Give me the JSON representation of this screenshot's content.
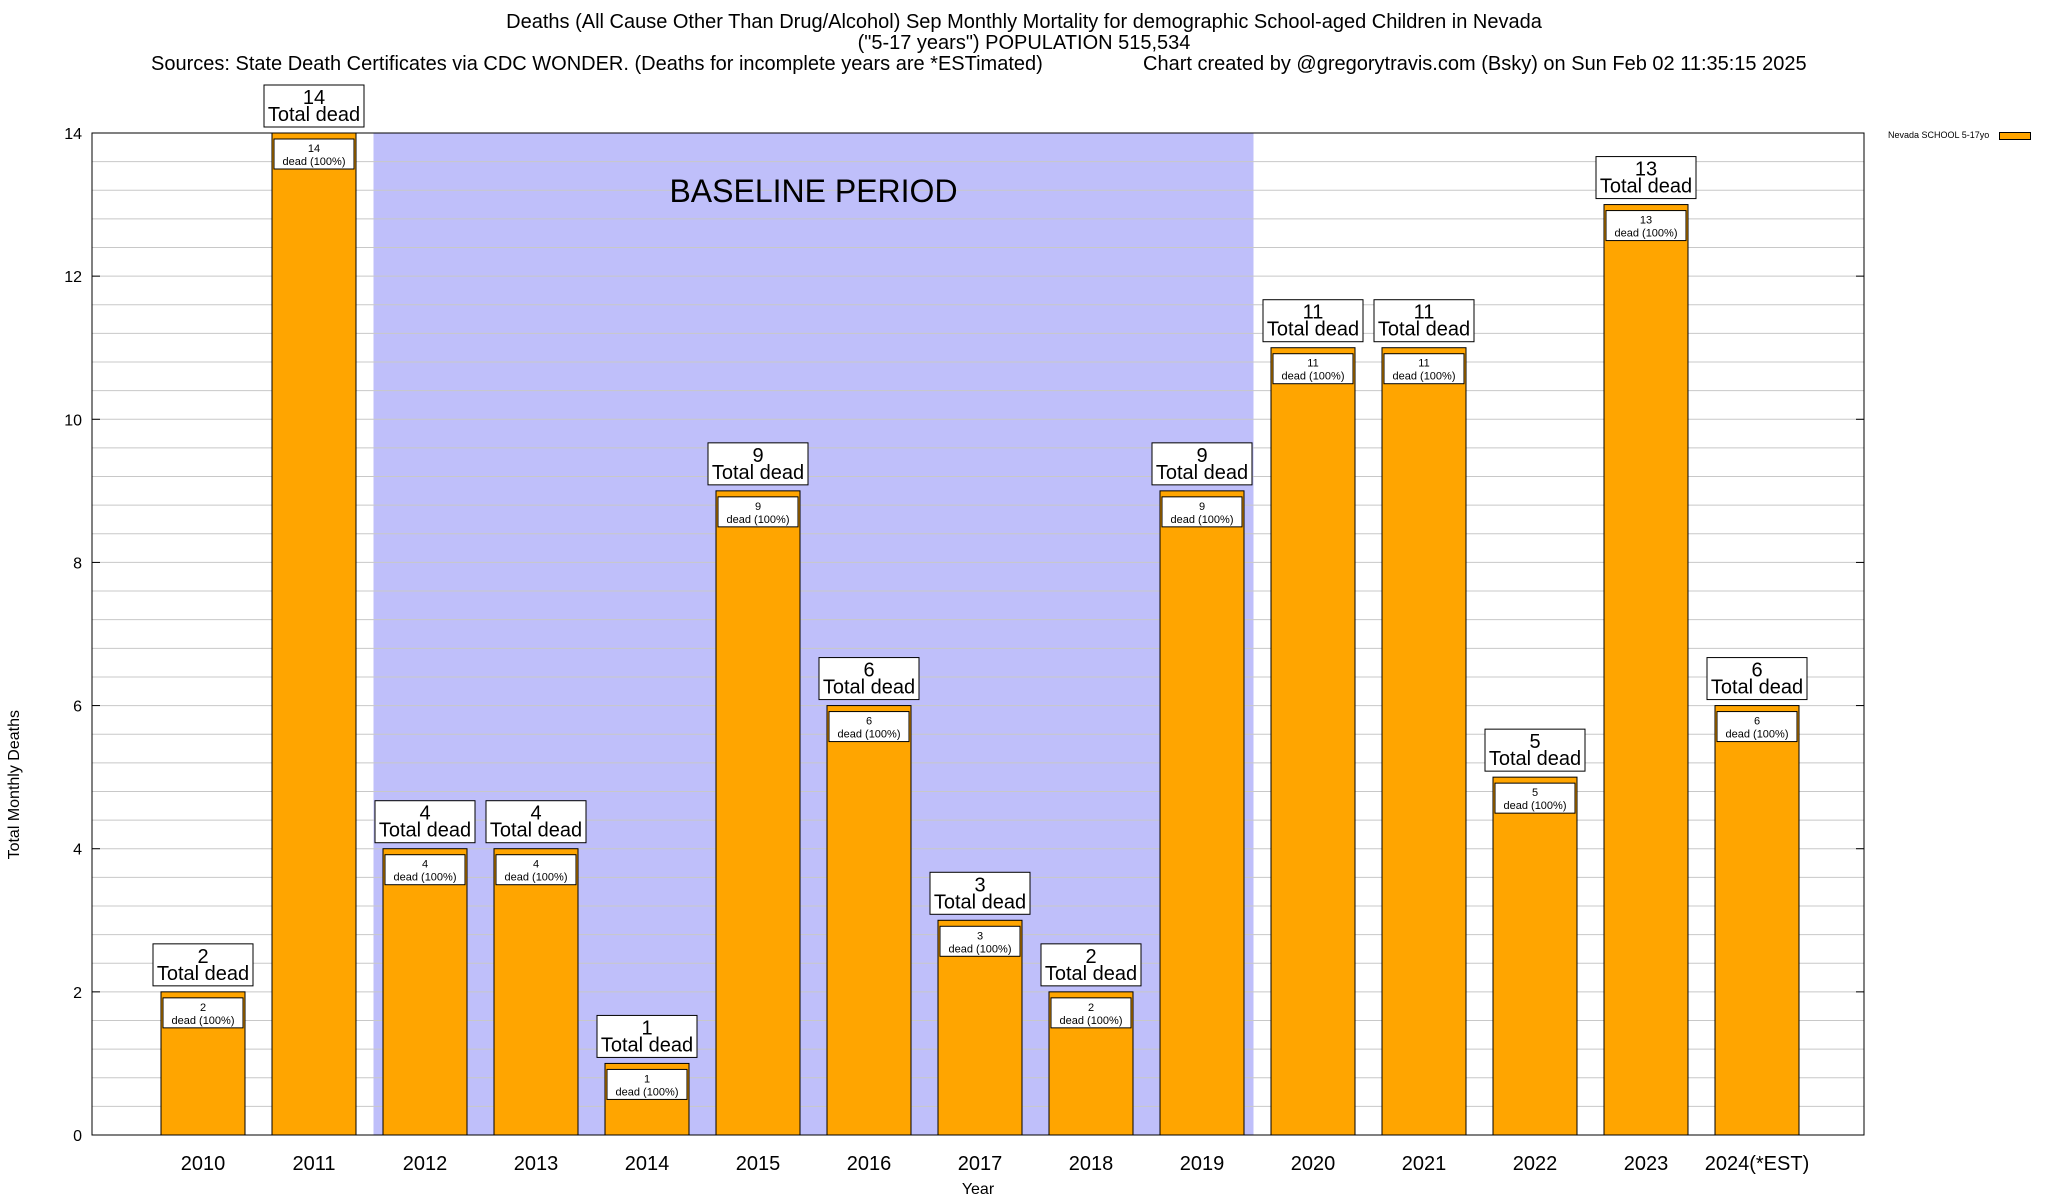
{
  "title": {
    "line1": "Deaths (All Cause Other Than Drug/Alcohol) Sep Monthly Mortality for demographic School-aged Children in Nevada",
    "line2": "(\"5-17 years\") POPULATION 515,534",
    "sources": "Sources: State Death Certificates via CDC WONDER. (Deaths for incomplete years are *ESTimated)",
    "credit": "Chart created by @gregorytravis.com (Bsky) on Sun Feb 02 11:35:15 2025"
  },
  "legend": {
    "label": "Nevada SCHOOL 5-17yo",
    "color": "#ffa500"
  },
  "shaded_region": {
    "label": "BASELINE PERIOD",
    "from": "2012",
    "to": "2019",
    "color": "#bfbffa"
  },
  "chart_data": {
    "type": "bar",
    "categories": [
      "2010",
      "2011",
      "2012",
      "2013",
      "2014",
      "2015",
      "2016",
      "2017",
      "2018",
      "2019",
      "2020",
      "2021",
      "2022",
      "2023",
      "2024(*EST)"
    ],
    "series": [
      {
        "name": "Nevada SCHOOL 5-17yo",
        "values": [
          2,
          14,
          4,
          4,
          1,
          9,
          6,
          3,
          2,
          9,
          11,
          11,
          5,
          13,
          6
        ]
      }
    ],
    "bar_label_top": "Total dead",
    "bar_label_inner": "dead (100%)",
    "xlabel": "Year",
    "ylabel": "Total Monthly Deaths",
    "ylim": [
      0,
      14
    ],
    "yticks": [
      0,
      2,
      4,
      6,
      8,
      10,
      12,
      14
    ],
    "grid": true,
    "legend_position": "top-right",
    "colors": {
      "bar": "#ffa500",
      "shade": "#bfbffa",
      "grid": "#c8c8c8"
    }
  }
}
